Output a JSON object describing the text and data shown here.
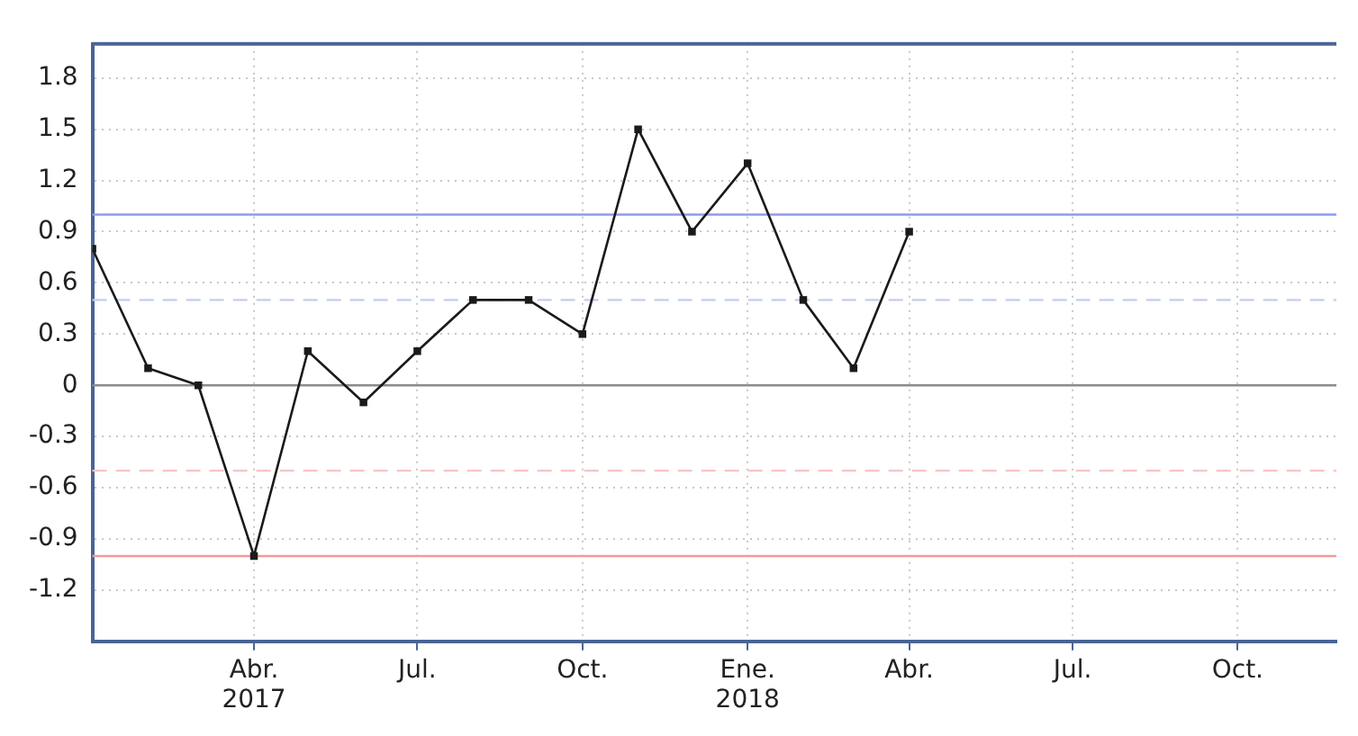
{
  "chart_data": {
    "type": "line",
    "x": [
      "2017-01",
      "2017-02",
      "2017-03",
      "2017-04",
      "2017-05",
      "2017-06",
      "2017-07",
      "2017-08",
      "2017-09",
      "2017-10",
      "2017-11",
      "2017-12",
      "2018-01",
      "2018-02",
      "2018-03",
      "2018-04"
    ],
    "series": [
      {
        "color": "#1a1a1a",
        "values": [
          0.8,
          0.1,
          0.0,
          -1.0,
          0.2,
          -0.1,
          0.2,
          0.5,
          0.5,
          0.3,
          1.5,
          0.9,
          1.3,
          0.5,
          0.1,
          0.9
        ]
      }
    ],
    "xlim": [
      "2017-01",
      "2018-11-25"
    ],
    "xticks": [
      {
        "value": "2017-04",
        "label": "Abr.\n2017"
      },
      {
        "value": "2017-07",
        "label": "Jul."
      },
      {
        "value": "2017-10",
        "label": "Oct."
      },
      {
        "value": "2018-01",
        "label": "Ene.\n2018"
      },
      {
        "value": "2018-04",
        "label": "Abr."
      },
      {
        "value": "2018-07",
        "label": "Jul."
      },
      {
        "value": "2018-10",
        "label": "Oct."
      }
    ],
    "ylim": [
      -1.5,
      2.0
    ],
    "yticks": [
      -1.2,
      -0.9,
      -0.6,
      -0.3,
      0,
      0.3,
      0.6,
      0.9,
      1.2,
      1.5,
      1.8
    ],
    "ref_lines": [
      {
        "axis": "y",
        "value": 1,
        "color": "#8c9cf0",
        "line_style": "solid"
      },
      {
        "axis": "y",
        "value": 0.5,
        "color": "#c4cbf7",
        "line_style": "dashed"
      },
      {
        "axis": "y",
        "value": 0,
        "color": "#8c8c8c",
        "line_style": "solid"
      },
      {
        "axis": "y",
        "value": -0.5,
        "color": "#f7c4c4",
        "line_style": "dashed"
      },
      {
        "axis": "y",
        "value": -1,
        "color": "#f29a9a",
        "line_style": "solid"
      }
    ],
    "grid": true,
    "legend": false,
    "marker": "square",
    "line_style": "solid"
  }
}
